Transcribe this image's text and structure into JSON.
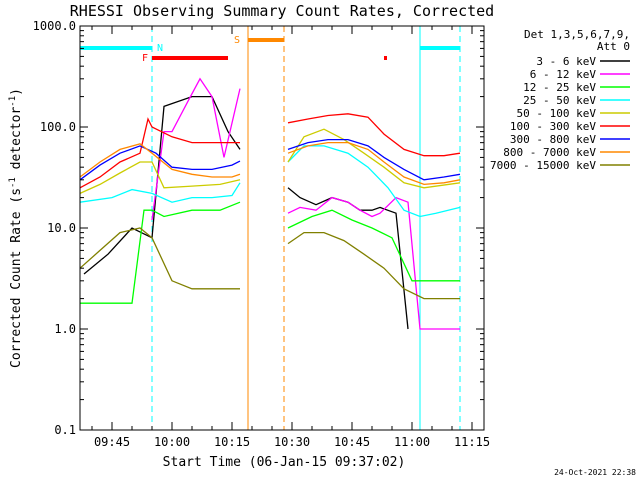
{
  "chart_data": {
    "type": "line",
    "title": "RHESSI Observing Summary Count Rates, Corrected",
    "xlabel": "Start Time (06-Jan-15 09:37:02)",
    "ylabel": "Corrected Count Rate (s⁻¹ detector⁻¹)",
    "x_ticks": [
      "09:45",
      "10:00",
      "10:15",
      "10:30",
      "10:45",
      "11:00",
      "11:15"
    ],
    "xlim": [
      "09:37",
      "11:18"
    ],
    "y_scale": "log",
    "ylim": [
      0.1,
      1000
    ],
    "y_ticks": [
      "0.1",
      "1.0",
      "10.0",
      "100.0",
      "1000.0"
    ],
    "legend_header": [
      "Det 1,3,5,6,7,9,",
      "Att 0"
    ],
    "legend_position": "top-right outside",
    "series": [
      {
        "name": "3 - 6 keV",
        "color": "#000000",
        "x": [
          "09:38",
          "09:44",
          "09:50",
          "09:55",
          "09:58",
          "10:05",
          "10:10",
          "10:14",
          "10:17",
          "10:26",
          "10:29",
          "10:32",
          "10:36",
          "10:40",
          "10:44",
          "10:47",
          "10:50",
          "10:52",
          "10:56",
          "10:59"
        ],
        "y": [
          3.5,
          5.5,
          10,
          8,
          160,
          200,
          200,
          90,
          60,
          null,
          25,
          20,
          17,
          20,
          18,
          15,
          15,
          16,
          14,
          1.0
        ]
      },
      {
        "name": "6 - 12 keV",
        "color": "#ff00ff",
        "x": [
          "09:55",
          "09:58",
          "10:00",
          "10:04",
          "10:07",
          "10:10",
          "10:13",
          "10:17",
          "10:26",
          "10:29",
          "10:32",
          "10:36",
          "10:40",
          "10:44",
          "10:47",
          "10:50",
          "10:52",
          "10:56",
          "10:59",
          "11:02",
          "11:07",
          "11:12"
        ],
        "y": [
          12,
          90,
          90,
          180,
          300,
          200,
          50,
          240,
          null,
          14,
          16,
          15,
          20,
          18,
          15,
          13,
          14,
          20,
          18,
          1.0,
          1.0,
          1.0
        ]
      },
      {
        "name": "12 - 25 keV",
        "color": "#00ff00",
        "x": [
          "09:37",
          "09:45",
          "09:50",
          "09:53",
          "09:55",
          "09:58",
          "10:05",
          "10:12",
          "10:17",
          "10:26",
          "10:29",
          "10:35",
          "10:40",
          "10:45",
          "10:50",
          "10:55",
          "11:00",
          "11:05",
          "11:12"
        ],
        "y": [
          1.8,
          1.8,
          1.8,
          15,
          15,
          13,
          15,
          15,
          18,
          null,
          10,
          13,
          15,
          12,
          10,
          8,
          3,
          3,
          3
        ]
      },
      {
        "name": "25 - 50 keV",
        "color": "#00ffff",
        "x": [
          "09:37",
          "09:45",
          "09:50",
          "09:55",
          "10:00",
          "10:05",
          "10:10",
          "10:15",
          "10:17",
          "10:26",
          "10:29",
          "10:33",
          "10:38",
          "10:44",
          "10:49",
          "10:54",
          "10:58",
          "11:02",
          "11:06",
          "11:12"
        ],
        "y": [
          18,
          20,
          24,
          22,
          18,
          20,
          20,
          21,
          28,
          null,
          45,
          65,
          65,
          55,
          40,
          25,
          15,
          13,
          14,
          16
        ]
      },
      {
        "name": "50 - 100 keV",
        "color": "#cccc00",
        "x": [
          "09:37",
          "09:42",
          "09:47",
          "09:52",
          "09:55",
          "09:58",
          "10:05",
          "10:12",
          "10:17",
          "10:26",
          "10:29",
          "10:33",
          "10:38",
          "10:43",
          "10:48",
          "10:53",
          "10:58",
          "11:03",
          "11:12"
        ],
        "y": [
          22,
          27,
          35,
          45,
          45,
          25,
          26,
          27,
          30,
          null,
          45,
          80,
          95,
          75,
          55,
          40,
          28,
          25,
          28
        ]
      },
      {
        "name": "100 - 300 keV",
        "color": "#ff0000",
        "x": [
          "09:37",
          "09:42",
          "09:47",
          "09:52",
          "09:54",
          "09:55",
          "10:00",
          "10:05",
          "10:10",
          "10:15",
          "10:17",
          "10:26",
          "10:29",
          "10:34",
          "10:39",
          "10:44",
          "10:49",
          "10:53",
          "10:58",
          "11:03",
          "11:08",
          "11:12"
        ],
        "y": [
          25,
          32,
          45,
          55,
          120,
          100,
          80,
          70,
          70,
          70,
          70,
          null,
          110,
          120,
          130,
          135,
          125,
          85,
          60,
          52,
          52,
          55
        ]
      },
      {
        "name": "300 - 800 keV",
        "color": "#0000ff",
        "x": [
          "09:37",
          "09:42",
          "09:47",
          "09:52",
          "09:56",
          "10:00",
          "10:05",
          "10:10",
          "10:15",
          "10:17",
          "10:26",
          "10:29",
          "10:34",
          "10:39",
          "10:44",
          "10:49",
          "10:53",
          "10:58",
          "11:03",
          "11:08",
          "11:12"
        ],
        "y": [
          30,
          42,
          55,
          65,
          55,
          40,
          38,
          38,
          42,
          46,
          null,
          60,
          70,
          75,
          75,
          65,
          50,
          38,
          30,
          32,
          34
        ]
      },
      {
        "name": "800 - 7000 keV",
        "color": "#ff8800",
        "x": [
          "09:37",
          "09:42",
          "09:47",
          "09:52",
          "09:55",
          "10:00",
          "10:05",
          "10:10",
          "10:15",
          "10:17",
          "10:26",
          "10:29",
          "10:34",
          "10:39",
          "10:44",
          "10:49",
          "10:53",
          "10:58",
          "11:03",
          "11:08",
          "11:12"
        ],
        "y": [
          32,
          45,
          60,
          68,
          55,
          38,
          34,
          32,
          32,
          34,
          null,
          55,
          65,
          70,
          70,
          60,
          45,
          32,
          27,
          28,
          30
        ]
      },
      {
        "name": "7000 - 15000 keV",
        "color": "#808000",
        "x": [
          "09:37",
          "09:42",
          "09:47",
          "09:52",
          "09:55",
          "10:00",
          "10:05",
          "10:10",
          "10:15",
          "10:17",
          "10:26",
          "10:29",
          "10:33",
          "10:38",
          "10:43",
          "10:48",
          "10:53",
          "10:58",
          "11:03",
          "11:08",
          "11:12"
        ],
        "y": [
          4,
          6,
          9,
          10,
          8,
          3,
          2.5,
          2.5,
          2.5,
          2.5,
          null,
          7,
          9,
          9,
          7.5,
          5.5,
          4,
          2.5,
          2,
          2,
          2
        ]
      }
    ],
    "markers": [
      {
        "label": "N",
        "color": "#00ffff",
        "type": "night",
        "spans": [
          [
            "09:37",
            "09:55"
          ],
          [
            "11:02",
            "11:12"
          ]
        ],
        "vlines_solid": [
          "09:37",
          "11:02"
        ],
        "vlines_dashed": [
          "09:55",
          "11:12"
        ]
      },
      {
        "label": "F",
        "color": "#ff0000",
        "type": "flare",
        "spans": [
          [
            "09:55",
            "10:14"
          ],
          [
            "10:53",
            "10:53"
          ]
        ]
      },
      {
        "label": "S",
        "color": "#ff8800",
        "type": "saa",
        "spans": [
          [
            "10:19",
            "10:28"
          ]
        ],
        "vlines_solid": [
          "10:19"
        ],
        "vlines_dashed": [
          "10:28"
        ]
      }
    ],
    "grid": false
  },
  "footer": {
    "timestamp": "24-Oct-2021 22:38"
  }
}
